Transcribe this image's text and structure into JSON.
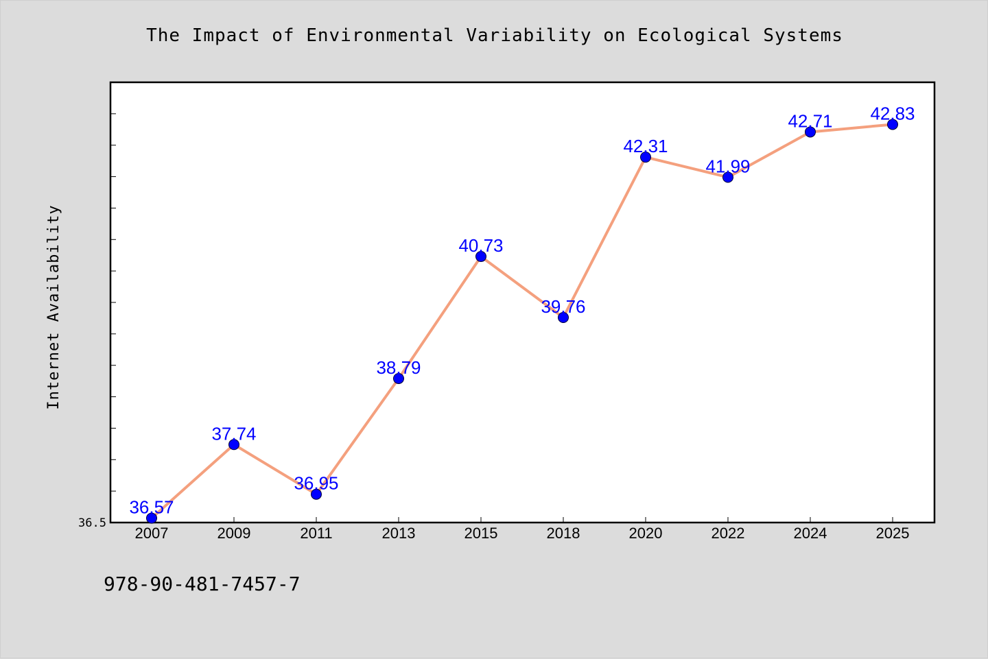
{
  "chart_data": {
    "type": "line",
    "title": "The Impact of Environmental Variability on Ecological Systems",
    "xlabel": "",
    "ylabel": "Internet Availability",
    "categories": [
      "2007",
      "2009",
      "2011",
      "2013",
      "2015",
      "2018",
      "2020",
      "2022",
      "2024",
      "2025"
    ],
    "series": [
      {
        "values": [
          36.57,
          37.74,
          36.95,
          38.79,
          40.73,
          39.76,
          42.31,
          41.99,
          42.71,
          42.83
        ]
      }
    ],
    "data_labels": [
      "36.57",
      "37.74",
      "36.95",
      "38.79",
      "40.73",
      "39.76",
      "42.31",
      "41.99",
      "42.71",
      "42.83"
    ],
    "y_tick_labels": [
      "36.5"
    ],
    "ylim": [
      36.5,
      43.5
    ],
    "grid": false,
    "colors": {
      "line": "#f4a07e",
      "marker": "#0000ff",
      "data_label": "#0000ff",
      "plot_background": "#ffffff",
      "figure_background": "#dcdcdc"
    }
  },
  "footer": {
    "isbn": "978-90-481-7457-7"
  }
}
